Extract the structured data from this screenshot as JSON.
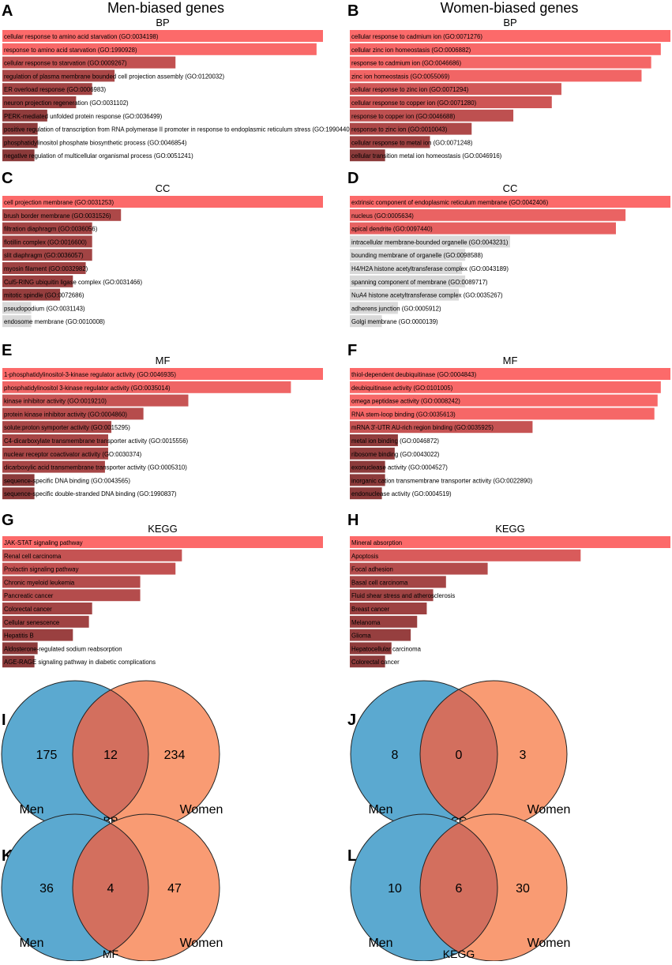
{
  "headers": {
    "men": "Men-biased genes",
    "women": "Women-biased genes"
  },
  "colors": {
    "bar_high": "#fc6a6a",
    "bar_low": "#8b3a3a",
    "bar_grey": "#d9d9d9",
    "men": "#5ba9d0",
    "women": "#f99b73",
    "overlap": "#d36f5e"
  },
  "chart_data": [
    {
      "panel": "A",
      "type": "bar",
      "orientation": "horizontal",
      "title": "BP",
      "xmax": 1,
      "categories": [
        "cellular response to amino acid starvation (GO:0034198)",
        "response to amino acid starvation (GO:1990928)",
        "cellular response to starvation (GO:0009267)",
        "regulation of plasma membrane bounded cell projection assembly (GO:0120032)",
        "ER overload response (GO:0006983)",
        "neuron projection regeneration (GO:0031102)",
        "PERK-mediated unfolded protein response (GO:0036499)",
        "positive regulation of transcription from RNA polymerase II promoter in response to endoplasmic reticulum stress (GO:1990440)",
        "phosphatidylinositol phosphate biosynthetic process (GO:0046854)",
        "negative regulation of multicellular organismal process (GO:0051241)"
      ],
      "values": [
        1.0,
        0.98,
        0.54,
        0.35,
        0.28,
        0.23,
        0.14,
        0.11,
        0.11,
        0.1
      ],
      "significant": [
        true,
        true,
        true,
        true,
        true,
        true,
        true,
        true,
        true,
        true
      ]
    },
    {
      "panel": "B",
      "type": "bar",
      "orientation": "horizontal",
      "title": "BP",
      "xmax": 1,
      "categories": [
        "cellular response to cadmium ion (GO:0071276)",
        "cellular zinc ion homeostasis (GO:0006882)",
        "response to cadmium ion (GO:0046686)",
        "zinc ion homeostasis (GO:0055069)",
        "cellular response to zinc ion (GO:0071294)",
        "cellular response to copper ion (GO:0071280)",
        "response to copper ion (GO:0046688)",
        "response to zinc ion (GO:0010043)",
        "cellular response to metal ion (GO:0071248)",
        "cellular transition metal ion homeostasis (GO:0046916)"
      ],
      "values": [
        1.0,
        0.97,
        0.94,
        0.91,
        0.66,
        0.63,
        0.51,
        0.38,
        0.25,
        0.11
      ],
      "significant": [
        true,
        true,
        true,
        true,
        true,
        true,
        true,
        true,
        true,
        true
      ]
    },
    {
      "panel": "C",
      "type": "bar",
      "orientation": "horizontal",
      "title": "CC",
      "xmax": 1,
      "categories": [
        "cell projection membrane (GO:0031253)",
        "brush border membrane (GO:0031526)",
        "filtration diaphragm (GO:0036056)",
        "flotillin complex (GO:0016600)",
        "slit diaphragm (GO:0036057)",
        "myosin filament (GO:0032982)",
        "Cul5-RING ubiquitin ligase complex (GO:0031466)",
        "mitotic spindle (GO:0072686)",
        "pseudopodium (GO:0031143)",
        "endosome membrane (GO:0010008)"
      ],
      "values": [
        1.0,
        0.37,
        0.28,
        0.28,
        0.28,
        0.26,
        0.22,
        0.18,
        0.09,
        0.09
      ],
      "significant": [
        true,
        true,
        true,
        true,
        true,
        true,
        true,
        true,
        false,
        false
      ]
    },
    {
      "panel": "D",
      "type": "bar",
      "orientation": "horizontal",
      "title": "CC",
      "xmax": 1,
      "categories": [
        "extrinsic component of endoplasmic reticulum membrane (GO:0042406)",
        "nucleus (GO:0005634)",
        "apical dendrite (GO:0097440)",
        "intracellular membrane-bounded organelle (GO:0043231)",
        "bounding membrane of organelle (GO:0098588)",
        "H4/H2A histone acetyltransferase complex (GO:0043189)",
        "spanning component of membrane (GO:0089717)",
        "NuA4 histone acetyltransferase complex (GO:0035267)",
        "adherens junction (GO:0005912)",
        "Golgi membrane (GO:0000139)"
      ],
      "values": [
        1.0,
        0.86,
        0.83,
        0.5,
        0.36,
        0.35,
        0.36,
        0.34,
        0.15,
        0.1
      ],
      "significant": [
        true,
        true,
        true,
        false,
        false,
        false,
        false,
        false,
        false,
        false
      ]
    },
    {
      "panel": "E",
      "type": "bar",
      "orientation": "horizontal",
      "title": "MF",
      "xmax": 1,
      "categories": [
        "1-phosphatidylinositol-3-kinase regulator activity (GO:0046935)",
        "phosphatidylinositol 3-kinase regulator activity (GO:0035014)",
        "kinase inhibitor activity (GO:0019210)",
        "protein kinase inhibitor activity (GO:0004860)",
        "solute:proton symporter activity (GO:0015295)",
        "C4-dicarboxylate transmembrane transporter activity (GO:0015556)",
        "nuclear receptor coactivator activity (GO:0030374)",
        "dicarboxylic acid transmembrane transporter activity (GO:0005310)",
        "sequence-specific DNA binding (GO:0043565)",
        "sequence-specific double-stranded DNA binding (GO:1990837)"
      ],
      "values": [
        1.0,
        0.9,
        0.58,
        0.44,
        0.34,
        0.33,
        0.33,
        0.32,
        0.1,
        0.1
      ],
      "significant": [
        true,
        true,
        true,
        true,
        true,
        true,
        true,
        true,
        true,
        true
      ]
    },
    {
      "panel": "F",
      "type": "bar",
      "orientation": "horizontal",
      "title": "MF",
      "xmax": 1,
      "categories": [
        "thiol-dependent deubiquitinase (GO:0004843)",
        "deubiquitinase activity (GO:0101005)",
        "omega peptidase activity (GO:0008242)",
        "RNA stem-loop binding (GO:0035613)",
        "mRNA 3'-UTR AU-rich region binding (GO:0035925)",
        "metal ion binding (GO:0046872)",
        "ribosome binding (GO:0043022)",
        "exonuclease activity (GO:0004527)",
        "inorganic cation transmembrane transporter activity (GO:0022890)",
        "endonuclease activity (GO:0004519)"
      ],
      "values": [
        1.0,
        0.97,
        0.96,
        0.95,
        0.57,
        0.15,
        0.14,
        0.11,
        0.11,
        0.1
      ],
      "significant": [
        true,
        true,
        true,
        true,
        true,
        true,
        true,
        true,
        true,
        true
      ]
    },
    {
      "panel": "G",
      "type": "bar",
      "orientation": "horizontal",
      "title": "KEGG",
      "xmax": 1,
      "categories": [
        "JAK-STAT signaling pathway",
        "Renal cell carcinoma",
        "Prolactin signaling pathway",
        "Chronic myeloid leukemia",
        "Pancreatic cancer",
        "Colorectal cancer",
        "Cellular senescence",
        "Hepatitis B",
        "Aldosterone-regulated sodium reabsorption",
        "AGE-RAGE signaling pathway in diabetic complications"
      ],
      "values": [
        1.0,
        0.56,
        0.54,
        0.43,
        0.43,
        0.28,
        0.27,
        0.22,
        0.11,
        0.1
      ],
      "significant": [
        true,
        true,
        true,
        true,
        true,
        true,
        true,
        true,
        true,
        true
      ]
    },
    {
      "panel": "H",
      "type": "bar",
      "orientation": "horizontal",
      "title": "KEGG",
      "xmax": 1,
      "categories": [
        "Mineral absorption",
        "Apoptosis",
        "Focal adhesion",
        "Basal cell carcinoma",
        "Fluid shear stress and atherosclerosis",
        "Breast cancer",
        "Melanoma",
        "Glioma",
        "Hepatocellular carcinoma",
        "Colorectal cancer"
      ],
      "values": [
        1.0,
        0.72,
        0.43,
        0.3,
        0.26,
        0.24,
        0.21,
        0.19,
        0.13,
        0.11
      ],
      "significant": [
        true,
        true,
        true,
        true,
        true,
        true,
        true,
        true,
        true,
        true
      ]
    },
    {
      "panel": "I",
      "type": "venn",
      "title": "BP",
      "labels": [
        "Men",
        "Women"
      ],
      "only_a": 175,
      "both": 12,
      "only_b": 234
    },
    {
      "panel": "J",
      "type": "venn",
      "title": "CC",
      "labels": [
        "Men",
        "Women"
      ],
      "only_a": 8,
      "both": 0,
      "only_b": 3
    },
    {
      "panel": "K",
      "type": "venn",
      "title": "MF",
      "labels": [
        "Men",
        "Women"
      ],
      "only_a": 36,
      "both": 4,
      "only_b": 47
    },
    {
      "panel": "L",
      "type": "venn",
      "title": "KEGG",
      "labels": [
        "Men",
        "Women"
      ],
      "only_a": 10,
      "both": 6,
      "only_b": 30
    }
  ]
}
